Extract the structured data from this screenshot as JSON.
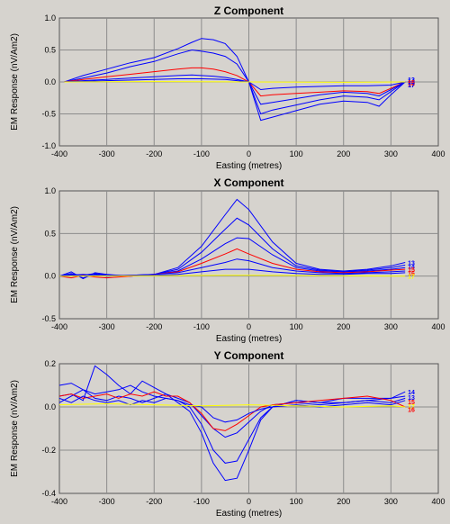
{
  "colors": {
    "background": "#d6d3ce",
    "plot_background": "#d6d3ce",
    "grid": "#8c8c8c",
    "frame": "#555555",
    "highlight_series": "#ff0000",
    "baseline_series": "#ffff00",
    "other_series": "#0000ff"
  },
  "chart_data": [
    {
      "type": "line",
      "title": "Z Component",
      "xlabel": "Easting (metres)",
      "ylabel": "EM Response (nV/Am2)",
      "xlim": [
        -400,
        400
      ],
      "ylim": [
        -1.0,
        1.0
      ],
      "xticks": [
        "-400",
        "-300",
        "-200",
        "-100",
        "0",
        "100",
        "200",
        "300",
        "400"
      ],
      "yticks": [
        "1.0",
        "0.5",
        "0.0",
        "-0.5",
        "-1.0"
      ],
      "ytick_values": [
        1.0,
        0.5,
        0.0,
        -0.5,
        -1.0
      ],
      "grid": true,
      "end_labels": [
        {
          "text": "13",
          "y": 0.04,
          "color": "#0000ff"
        },
        {
          "text": "14",
          "y": 0.02,
          "color": "#0000ff"
        },
        {
          "text": "15",
          "y": 0.0,
          "color": "#ff0000"
        },
        {
          "text": "16",
          "y": -0.02,
          "color": "#ff0000"
        },
        {
          "text": "17",
          "y": -0.04,
          "color": "#0000ff"
        }
      ],
      "series": [
        {
          "color": "#0000ff",
          "x": [
            -390,
            -350,
            -300,
            -250,
            -200,
            -150,
            -120,
            -100,
            -75,
            -50,
            -25,
            0,
            25,
            50,
            100,
            150,
            200,
            250,
            275,
            300,
            330
          ],
          "y": [
            0.0,
            0.1,
            0.2,
            0.3,
            0.38,
            0.52,
            0.62,
            0.68,
            0.66,
            0.6,
            0.4,
            0.0,
            -0.6,
            -0.55,
            -0.45,
            -0.35,
            -0.3,
            -0.32,
            -0.38,
            -0.2,
            0.0
          ]
        },
        {
          "color": "#0000ff",
          "x": [
            -390,
            -350,
            -300,
            -250,
            -200,
            -150,
            -120,
            -100,
            -75,
            -50,
            -25,
            0,
            25,
            50,
            100,
            150,
            200,
            250,
            275,
            300,
            330
          ],
          "y": [
            0.0,
            0.06,
            0.14,
            0.24,
            0.32,
            0.44,
            0.5,
            0.48,
            0.45,
            0.4,
            0.28,
            0.0,
            -0.5,
            -0.44,
            -0.36,
            -0.28,
            -0.22,
            -0.24,
            -0.28,
            -0.15,
            0.0
          ]
        },
        {
          "color": "#ff0000",
          "x": [
            -390,
            -350,
            -300,
            -250,
            -200,
            -150,
            -120,
            -100,
            -75,
            -50,
            -25,
            0,
            25,
            50,
            100,
            150,
            200,
            250,
            275,
            300,
            330
          ],
          "y": [
            0.0,
            0.04,
            0.08,
            0.12,
            0.16,
            0.2,
            0.22,
            0.22,
            0.2,
            0.16,
            0.1,
            0.0,
            -0.22,
            -0.2,
            -0.18,
            -0.16,
            -0.14,
            -0.15,
            -0.18,
            -0.1,
            0.0
          ]
        },
        {
          "color": "#0000ff",
          "x": [
            -390,
            -350,
            -300,
            -250,
            -200,
            -150,
            -120,
            -100,
            -75,
            -50,
            -25,
            0,
            25,
            50,
            100,
            150,
            200,
            250,
            275,
            300,
            330
          ],
          "y": [
            0.0,
            0.02,
            0.04,
            0.06,
            0.08,
            0.1,
            0.11,
            0.1,
            0.09,
            0.07,
            0.04,
            0.0,
            -0.35,
            -0.32,
            -0.26,
            -0.2,
            -0.16,
            -0.18,
            -0.22,
            -0.12,
            0.0
          ]
        },
        {
          "color": "#0000ff",
          "x": [
            -390,
            -300,
            -200,
            -150,
            -100,
            -50,
            0,
            25,
            50,
            100,
            150,
            200,
            250,
            300,
            330
          ],
          "y": [
            0.0,
            0.02,
            0.04,
            0.05,
            0.05,
            0.04,
            0.0,
            -0.12,
            -0.1,
            -0.08,
            -0.07,
            -0.06,
            -0.06,
            -0.05,
            0.0
          ]
        },
        {
          "color": "#ffff00",
          "x": [
            -390,
            -200,
            0,
            200,
            330
          ],
          "y": [
            0.0,
            0.005,
            0.0,
            -0.005,
            0.0
          ]
        }
      ]
    },
    {
      "type": "line",
      "title": "X Component",
      "xlabel": "Easting (metres)",
      "ylabel": "EM Response (nV/Am2)",
      "xlim": [
        -400,
        400
      ],
      "ylim": [
        -0.5,
        1.0
      ],
      "xticks": [
        "-400",
        "-300",
        "-200",
        "-100",
        "0",
        "100",
        "200",
        "300",
        "400"
      ],
      "yticks": [
        "1.0",
        "0.5",
        "0.0",
        "-0.5"
      ],
      "ytick_values": [
        1.0,
        0.5,
        0.0,
        -0.5
      ],
      "grid": true,
      "end_labels": [
        {
          "text": "13",
          "y": 0.16,
          "color": "#0000ff"
        },
        {
          "text": "14",
          "y": 0.12,
          "color": "#0000ff"
        },
        {
          "text": "15",
          "y": 0.08,
          "color": "#ff0000"
        },
        {
          "text": "16",
          "y": 0.04,
          "color": "#ff0000"
        },
        {
          "text": "17",
          "y": 0.0,
          "color": "#ffff00"
        }
      ],
      "series": [
        {
          "color": "#0000ff",
          "x": [
            -400,
            -375,
            -350,
            -325,
            -300,
            -250,
            -200,
            -150,
            -100,
            -50,
            -25,
            0,
            50,
            100,
            150,
            200,
            250,
            300,
            330
          ],
          "y": [
            0.0,
            0.05,
            -0.03,
            0.04,
            0.02,
            0.0,
            0.02,
            0.1,
            0.35,
            0.72,
            0.9,
            0.78,
            0.4,
            0.15,
            0.08,
            0.06,
            0.08,
            0.12,
            0.16
          ]
        },
        {
          "color": "#0000ff",
          "x": [
            -400,
            -375,
            -350,
            -325,
            -300,
            -250,
            -200,
            -150,
            -100,
            -50,
            -25,
            0,
            50,
            100,
            150,
            200,
            250,
            300,
            330
          ],
          "y": [
            0.0,
            0.02,
            0.01,
            0.03,
            0.01,
            0.0,
            0.02,
            0.08,
            0.28,
            0.55,
            0.68,
            0.6,
            0.32,
            0.12,
            0.07,
            0.05,
            0.07,
            0.1,
            0.13
          ]
        },
        {
          "color": "#0000ff",
          "x": [
            -400,
            -375,
            -350,
            -325,
            -300,
            -250,
            -200,
            -150,
            -100,
            -50,
            -25,
            0,
            50,
            100,
            150,
            200,
            250,
            300,
            330
          ],
          "y": [
            0.0,
            0.03,
            -0.02,
            0.02,
            0.0,
            0.01,
            0.02,
            0.06,
            0.2,
            0.38,
            0.45,
            0.44,
            0.25,
            0.1,
            0.06,
            0.05,
            0.06,
            0.08,
            0.1
          ]
        },
        {
          "color": "#ff0000",
          "x": [
            -400,
            -375,
            -350,
            -325,
            -300,
            -250,
            -200,
            -150,
            -100,
            -50,
            -25,
            0,
            50,
            100,
            150,
            200,
            250,
            300,
            330
          ],
          "y": [
            0.0,
            -0.02,
            0.01,
            -0.01,
            -0.02,
            0.0,
            0.02,
            0.05,
            0.15,
            0.26,
            0.32,
            0.26,
            0.15,
            0.08,
            0.05,
            0.04,
            0.05,
            0.07,
            0.08
          ]
        },
        {
          "color": "#0000ff",
          "x": [
            -400,
            -350,
            -300,
            -250,
            -200,
            -150,
            -100,
            -50,
            -25,
            0,
            50,
            100,
            150,
            200,
            250,
            300,
            330
          ],
          "y": [
            0.0,
            0.02,
            0.0,
            0.01,
            0.02,
            0.04,
            0.1,
            0.16,
            0.2,
            0.18,
            0.1,
            0.06,
            0.04,
            0.03,
            0.04,
            0.05,
            0.06
          ]
        },
        {
          "color": "#0000ff",
          "x": [
            -400,
            -300,
            -200,
            -150,
            -100,
            -50,
            0,
            50,
            100,
            150,
            200,
            250,
            300,
            330
          ],
          "y": [
            0.0,
            0.01,
            0.01,
            0.02,
            0.05,
            0.08,
            0.08,
            0.05,
            0.03,
            0.02,
            0.02,
            0.03,
            0.03,
            0.04
          ]
        },
        {
          "color": "#ffff00",
          "x": [
            -400,
            -200,
            0,
            200,
            330
          ],
          "y": [
            0.0,
            0.005,
            0.01,
            0.005,
            0.0
          ]
        }
      ]
    },
    {
      "type": "line",
      "title": "Y Component",
      "xlabel": "Easting (metres)",
      "ylabel": "EM Response (nV/Am2)",
      "xlim": [
        -400,
        400
      ],
      "ylim": [
        -0.4,
        0.2
      ],
      "xticks": [
        "-400",
        "-300",
        "-200",
        "-100",
        "0",
        "100",
        "200",
        "300",
        "400"
      ],
      "yticks": [
        "0.2",
        "0.0",
        "-0.2",
        "-0.4"
      ],
      "ytick_values": [
        0.2,
        0.0,
        -0.2,
        -0.4
      ],
      "grid": true,
      "end_labels": [
        {
          "text": "14",
          "y": 0.07,
          "color": "#0000ff"
        },
        {
          "text": "13",
          "y": 0.045,
          "color": "#0000ff"
        },
        {
          "text": "15",
          "y": 0.025,
          "color": "#ff0000"
        },
        {
          "text": "17",
          "y": 0.005,
          "color": "#ffff00"
        },
        {
          "text": "16",
          "y": -0.01,
          "color": "#ff0000"
        }
      ],
      "series": [
        {
          "color": "#0000ff",
          "x": [
            -400,
            -375,
            -350,
            -325,
            -300,
            -275,
            -250,
            -225,
            -200,
            -175,
            -150,
            -125,
            -100,
            -75,
            -50,
            -25,
            0,
            25,
            50,
            100,
            150,
            200,
            250,
            300,
            330
          ],
          "y": [
            0.05,
            0.06,
            0.03,
            0.19,
            0.15,
            0.1,
            0.06,
            0.12,
            0.09,
            0.06,
            0.02,
            -0.02,
            -0.12,
            -0.26,
            -0.34,
            -0.33,
            -0.2,
            -0.06,
            0.0,
            0.03,
            0.02,
            0.02,
            0.03,
            0.04,
            0.07
          ]
        },
        {
          "color": "#0000ff",
          "x": [
            -400,
            -375,
            -350,
            -325,
            -300,
            -275,
            -250,
            -225,
            -200,
            -175,
            -150,
            -125,
            -100,
            -75,
            -50,
            -25,
            0,
            25,
            50,
            100,
            150,
            200,
            250,
            300,
            330
          ],
          "y": [
            0.1,
            0.11,
            0.08,
            0.06,
            0.07,
            0.08,
            0.1,
            0.07,
            0.05,
            0.04,
            0.03,
            0.0,
            -0.08,
            -0.2,
            -0.26,
            -0.25,
            -0.15,
            -0.05,
            0.0,
            0.03,
            0.02,
            0.04,
            0.04,
            0.04,
            0.05
          ]
        },
        {
          "color": "#0000ff",
          "x": [
            -400,
            -375,
            -350,
            -325,
            -300,
            -275,
            -250,
            -225,
            -200,
            -175,
            -150,
            -125,
            -100,
            -75,
            -50,
            -25,
            0,
            25,
            50,
            100,
            150,
            200,
            250,
            300,
            330
          ],
          "y": [
            0.02,
            0.05,
            0.08,
            0.04,
            0.03,
            0.05,
            0.04,
            0.02,
            0.04,
            0.06,
            0.04,
            0.02,
            -0.04,
            -0.1,
            -0.14,
            -0.12,
            -0.07,
            -0.02,
            0.01,
            0.02,
            0.01,
            0.02,
            0.03,
            0.02,
            0.04
          ]
        },
        {
          "color": "#ff0000",
          "x": [
            -400,
            -375,
            -350,
            -325,
            -300,
            -275,
            -250,
            -225,
            -200,
            -175,
            -150,
            -125,
            -100,
            -75,
            -50,
            -25,
            0,
            25,
            50,
            100,
            150,
            200,
            250,
            300,
            330
          ],
          "y": [
            0.05,
            0.06,
            0.04,
            0.05,
            0.06,
            0.04,
            0.06,
            0.05,
            0.07,
            0.05,
            0.05,
            0.02,
            -0.03,
            -0.1,
            -0.11,
            -0.08,
            -0.04,
            0.0,
            0.01,
            0.02,
            0.03,
            0.04,
            0.05,
            0.03,
            0.0
          ]
        },
        {
          "color": "#0000ff",
          "x": [
            -400,
            -375,
            -350,
            -325,
            -300,
            -275,
            -250,
            -225,
            -200,
            -175,
            -150,
            -125,
            -100,
            -75,
            -50,
            -25,
            0,
            25,
            50,
            100,
            150,
            200,
            250,
            300,
            330
          ],
          "y": [
            0.04,
            0.02,
            0.05,
            0.03,
            0.02,
            0.03,
            0.01,
            0.03,
            0.02,
            0.04,
            0.03,
            0.01,
            0.0,
            -0.05,
            -0.07,
            -0.06,
            -0.03,
            -0.01,
            0.0,
            0.01,
            0.0,
            0.01,
            0.02,
            0.01,
            0.03
          ]
        },
        {
          "color": "#ffff00",
          "x": [
            -400,
            -300,
            -200,
            -100,
            0,
            100,
            200,
            300,
            330
          ],
          "y": [
            0.01,
            0.015,
            0.01,
            0.005,
            0.01,
            0.005,
            0.0,
            0.005,
            0.0
          ]
        }
      ]
    }
  ]
}
